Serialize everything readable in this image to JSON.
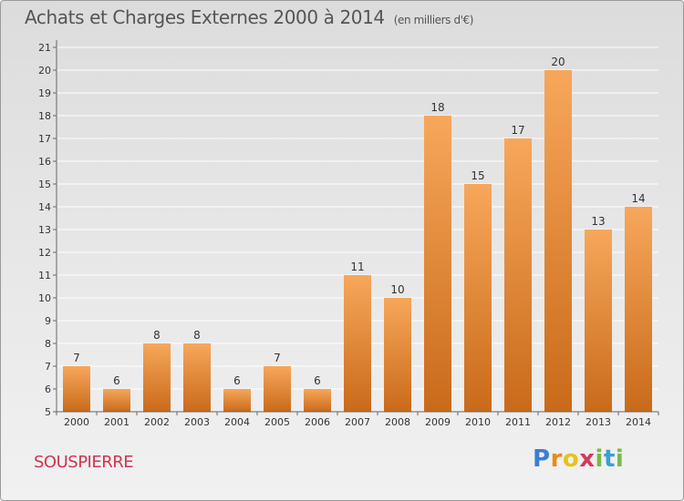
{
  "header": {
    "title": "Achats et Charges Externes 2000 à 2014",
    "unit": "(en milliers d'€)"
  },
  "location": "SOUSPIERRE",
  "brand": {
    "letters": [
      "P",
      "r",
      "o",
      "x",
      "i",
      "t",
      "i"
    ],
    "colors": [
      "#3a7fd4",
      "#e88b1d",
      "#e8c21d",
      "#d43a5a",
      "#7bb84a",
      "#3a9fd4",
      "#7bb84a"
    ]
  },
  "colors": {
    "bar_top": "#f7a75b",
    "bar_bottom": "#c96a1a",
    "grid": "#ffffff",
    "axis_text": "#333333"
  },
  "chart_data": {
    "type": "bar",
    "title": "Achats et Charges Externes 2000 à 2014",
    "subtitle": "(en milliers d'€)",
    "xlabel": "",
    "ylabel": "",
    "categories": [
      "2000",
      "2001",
      "2002",
      "2003",
      "2004",
      "2005",
      "2006",
      "2007",
      "2008",
      "2009",
      "2010",
      "2011",
      "2012",
      "2013",
      "2014"
    ],
    "values": [
      7,
      6,
      8,
      8,
      6,
      7,
      6,
      11,
      10,
      18,
      15,
      17,
      20,
      13,
      14
    ],
    "ylim": [
      5,
      21
    ],
    "yticks": [
      5,
      6,
      7,
      8,
      9,
      10,
      11,
      12,
      13,
      14,
      15,
      16,
      17,
      18,
      19,
      20,
      21
    ],
    "grid": true,
    "data_labels": true
  }
}
